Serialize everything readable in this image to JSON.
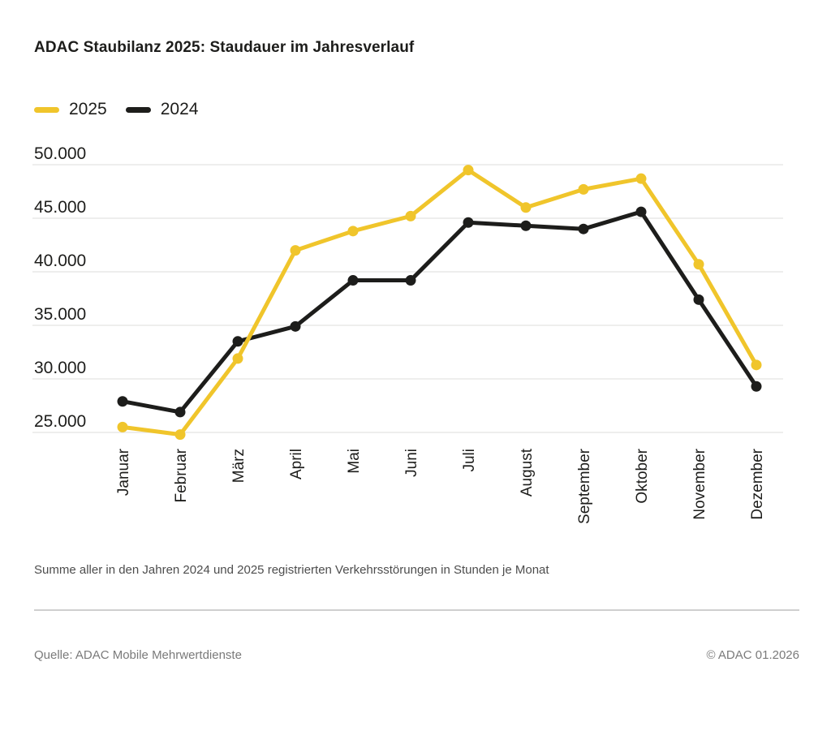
{
  "header": {
    "title": "ADAC Staubilanz 2025: Staudauer im Jahresverlauf"
  },
  "chart_data": {
    "type": "line",
    "title": "ADAC Staubilanz 2025: Staudauer im Jahresverlauf",
    "categories": [
      "Januar",
      "Februar",
      "März",
      "April",
      "Mai",
      "Juni",
      "Juli",
      "August",
      "September",
      "Oktober",
      "November",
      "Dezember"
    ],
    "series": [
      {
        "name": "2025",
        "color": "#F0C52B",
        "values": [
          25500,
          24800,
          31900,
          42000,
          43800,
          45200,
          49500,
          46000,
          47700,
          48700,
          40700,
          31300
        ]
      },
      {
        "name": "2024",
        "color": "#1D1D1B",
        "values": [
          27900,
          26900,
          33500,
          34900,
          39200,
          39200,
          44600,
          44300,
          44000,
          45600,
          37400,
          29300
        ]
      }
    ],
    "yticks": [
      25000,
      30000,
      35000,
      40000,
      45000,
      50000
    ],
    "ytick_labels": [
      "25.000",
      "30.000",
      "35.000",
      "40.000",
      "45.000",
      "50.000"
    ],
    "ylim": [
      24000,
      50500
    ],
    "xlabel": "",
    "ylabel": "",
    "grid": true,
    "gridline_color": "#E8E8E7",
    "legend_position": "top-left"
  },
  "footnote": "Summe aller in den Jahren 2024 und 2025 registrierten Verkehrsstörungen in Stunden je Monat",
  "footer": {
    "source": "Quelle: ADAC Mobile Mehrwertdienste",
    "copyright": "© ADAC 01.2026"
  }
}
